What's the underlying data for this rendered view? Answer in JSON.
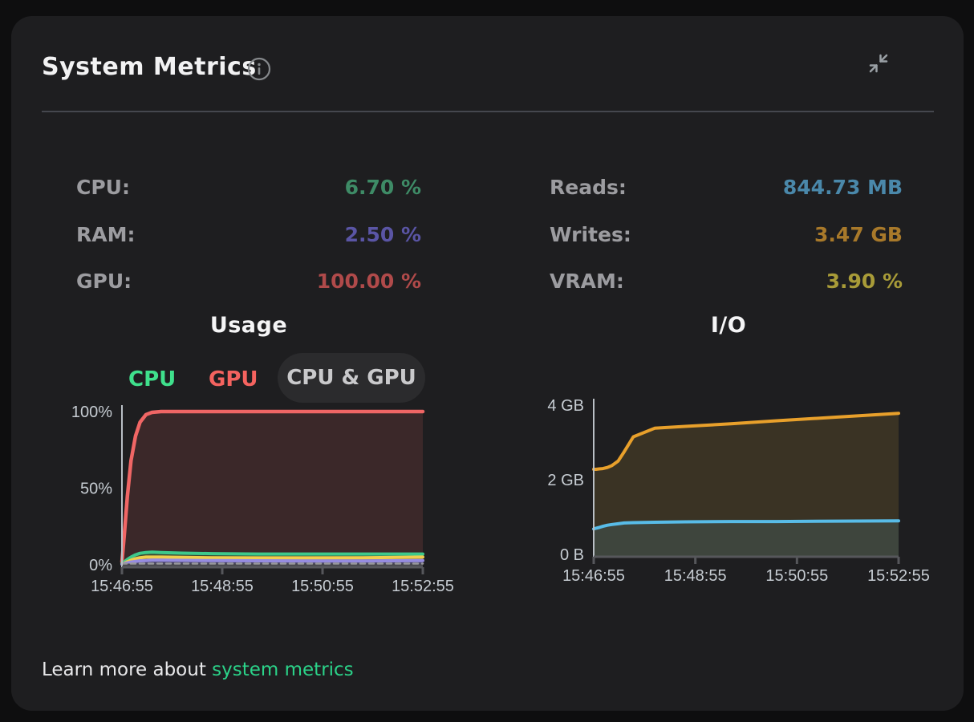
{
  "header": {
    "title": "System Metrics"
  },
  "icons": {
    "info": "info-icon",
    "collapse": "collapse-arrows-icon"
  },
  "stats": {
    "left": [
      {
        "label": "CPU:",
        "value": "6.70 %",
        "color": "#3e8b66"
      },
      {
        "label": "RAM:",
        "value": "2.50 %",
        "color": "#5a55a5"
      },
      {
        "label": "GPU:",
        "value": "100.00 %",
        "color": "#b04a4a"
      }
    ],
    "right": [
      {
        "label": "Reads:",
        "value": "844.73 MB",
        "color": "#4a88aa"
      },
      {
        "label": "Writes:",
        "value": "3.47 GB",
        "color": "#a8792a"
      },
      {
        "label": "VRAM:",
        "value": "3.90 %",
        "color": "#a89b38"
      }
    ]
  },
  "usage_tabs": [
    {
      "label": "CPU",
      "color": "#3fe08c",
      "selected": false
    },
    {
      "label": "GPU",
      "color": "#f4635f",
      "selected": false
    },
    {
      "label": "CPU & GPU",
      "color": "#c9c9cb",
      "selected": true
    }
  ],
  "chart_data": [
    {
      "type": "area",
      "title": "Usage",
      "x_tick_labels": [
        "15:46:55",
        "15:48:55",
        "15:50:55",
        "15:52:55"
      ],
      "y_tick_labels": [
        "0%",
        "50%",
        "100%"
      ],
      "y_tick_values": [
        0,
        50,
        100
      ],
      "ylim": [
        0,
        100
      ],
      "legend_position": "top",
      "grid": false,
      "x": [
        0,
        0.008,
        0.018,
        0.03,
        0.045,
        0.06,
        0.08,
        0.1,
        0.13,
        0.2,
        0.3,
        0.45,
        0.6,
        0.8,
        1
      ],
      "series": [
        {
          "name": "GPU",
          "color": "#f06665",
          "fill": "#3b2829",
          "values": [
            2,
            20,
            45,
            68,
            84,
            93,
            98,
            99.5,
            100,
            100,
            100,
            100,
            100,
            100,
            100
          ]
        },
        {
          "name": "CPU",
          "color": "#3ec98b",
          "fill": "#3e4a31",
          "values": [
            1,
            2,
            3.5,
            5,
            6.5,
            7.5,
            8,
            8.2,
            8,
            7.6,
            7.3,
            7,
            7,
            7,
            7
          ]
        },
        {
          "name": "VRAM",
          "color": "#f0ce4e",
          "fill": "#7a5c2c",
          "values": [
            0.5,
            1,
            2,
            3,
            4,
            4.6,
            5,
            5,
            5,
            4.8,
            4.6,
            4.5,
            4.5,
            4.6,
            5
          ]
        },
        {
          "name": "RAM",
          "color": "#968ce0",
          "fill": "#4a4466",
          "values": [
            0.3,
            0.8,
            1.2,
            1.8,
            2.2,
            2.6,
            2.8,
            3,
            3,
            2.9,
            2.7,
            2.6,
            2.5,
            2.5,
            2.8
          ]
        },
        {
          "name": "baseline",
          "color": "#98989c",
          "fill": "#47474d",
          "dashed": true,
          "values": [
            0.8,
            0.8,
            0.8,
            0.8,
            0.8,
            0.8,
            0.8,
            0.8,
            0.8,
            0.8,
            0.8,
            0.8,
            0.8,
            0.8,
            0.8
          ]
        }
      ]
    },
    {
      "type": "area",
      "title": "I/O",
      "x_tick_labels": [
        "15:46:55",
        "15:48:55",
        "15:50:55",
        "15:52:55"
      ],
      "y_tick_labels": [
        "0 B",
        "2 GB",
        "4 GB"
      ],
      "y_tick_values": [
        0,
        2,
        4
      ],
      "ylim": [
        0,
        4
      ],
      "grid": false,
      "x": [
        0,
        0.008,
        0.018,
        0.03,
        0.045,
        0.06,
        0.08,
        0.1,
        0.13,
        0.2,
        0.3,
        0.45,
        0.6,
        0.8,
        1
      ],
      "series": [
        {
          "name": "Writes",
          "color": "#e8a02b",
          "fill": "#3a3324",
          "values": [
            2.28,
            2.28,
            2.29,
            2.3,
            2.33,
            2.38,
            2.5,
            2.75,
            3.15,
            3.38,
            3.43,
            3.5,
            3.58,
            3.68,
            3.78
          ]
        },
        {
          "name": "Reads",
          "color": "#58bce8",
          "fill": "#3e453d",
          "values": [
            0.68,
            0.7,
            0.72,
            0.75,
            0.78,
            0.8,
            0.82,
            0.84,
            0.85,
            0.86,
            0.87,
            0.88,
            0.88,
            0.89,
            0.9
          ]
        }
      ]
    }
  ],
  "footer": {
    "text": "Learn more about",
    "link": "system metrics",
    "link_color": "#2bd389"
  }
}
